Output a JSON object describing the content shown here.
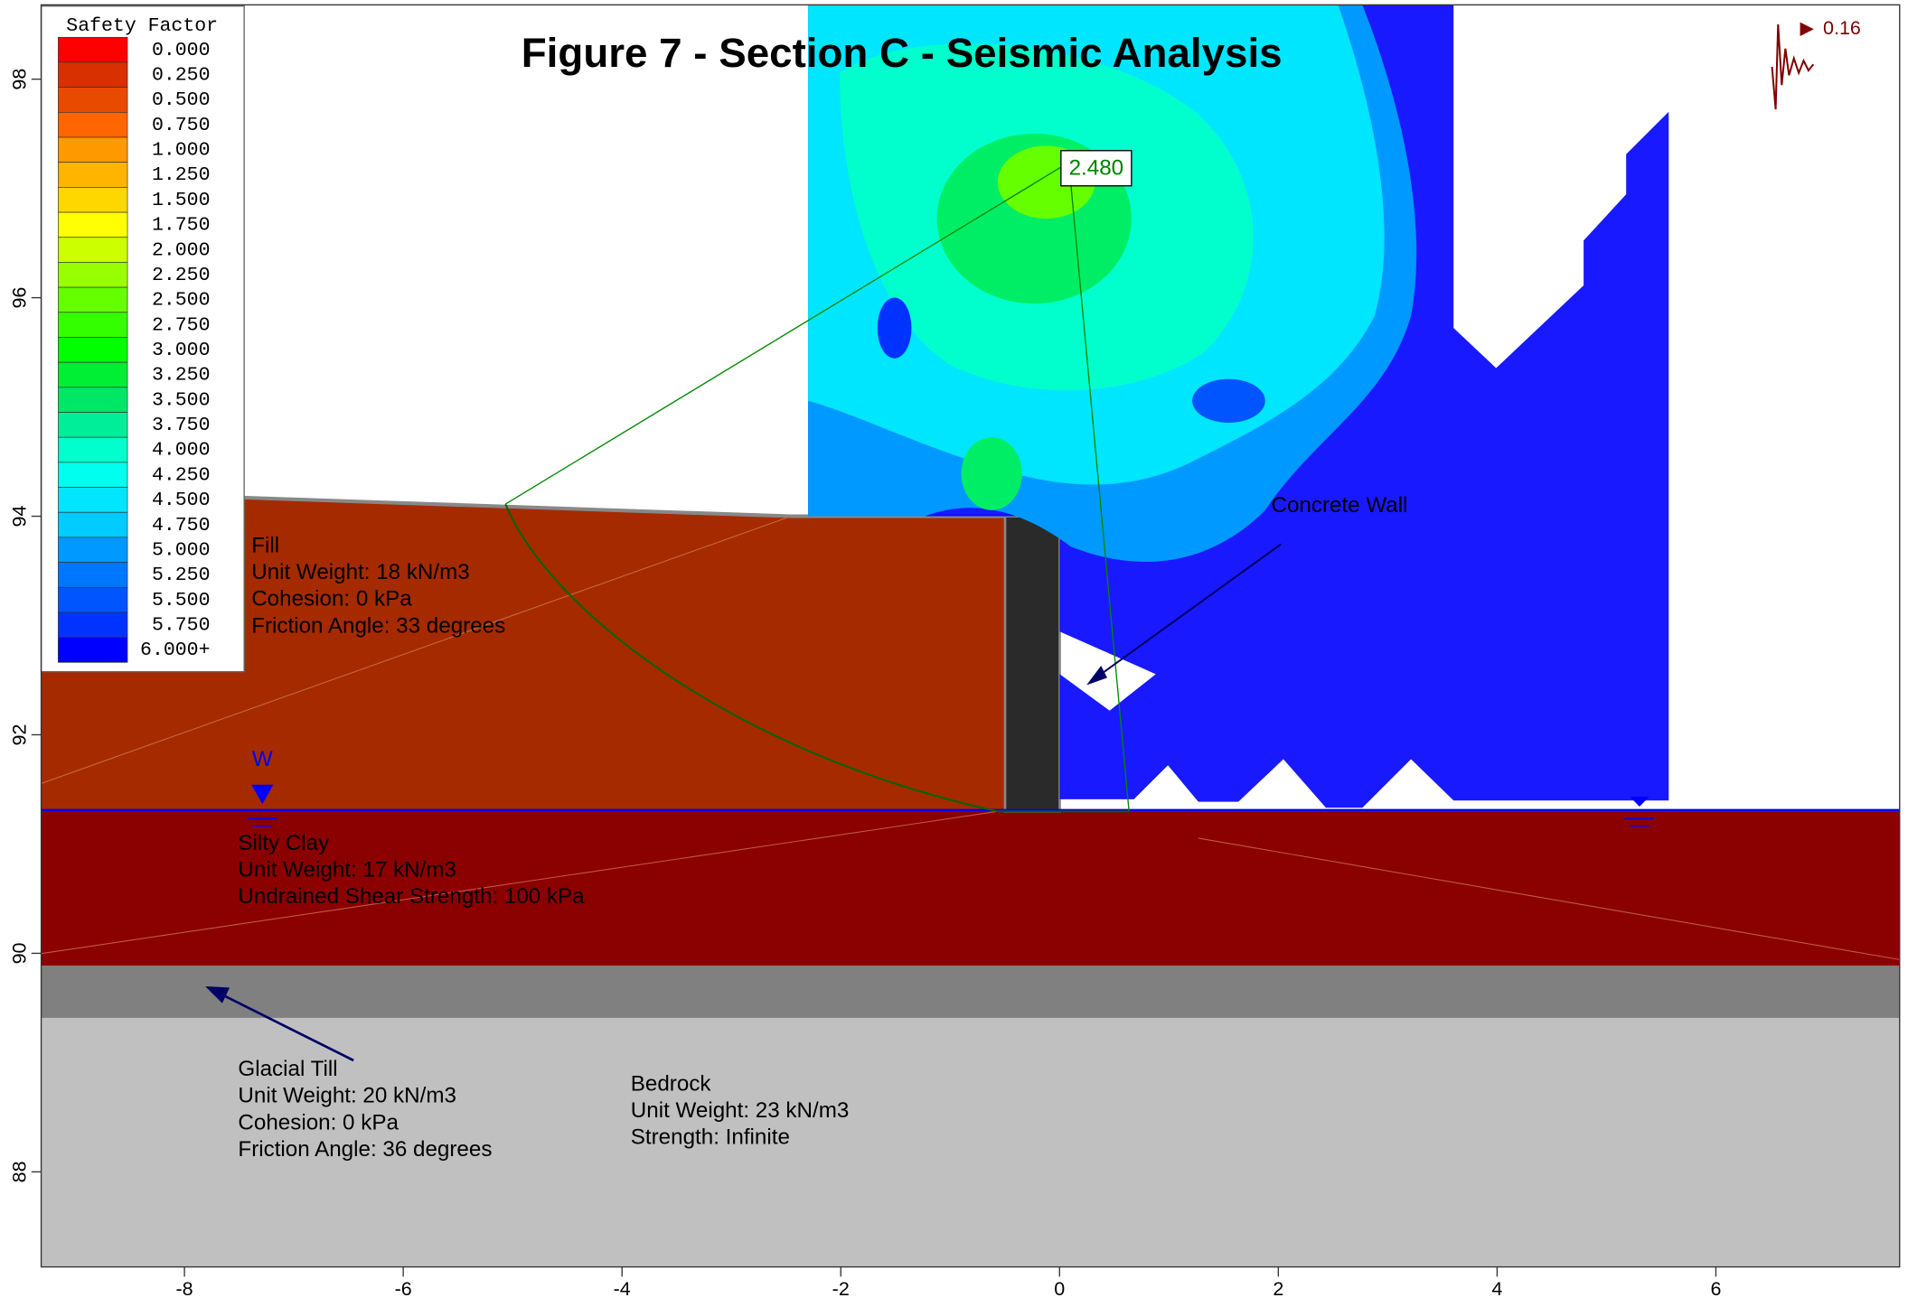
{
  "chart_data": {
    "type": "slope-stability",
    "title": "Figure 7 - Section C - Seismic Analysis",
    "xlim": [
      -9.31,
      7.68
    ],
    "ylim": [
      87.13,
      98.68
    ],
    "xticks": [
      -8,
      -6,
      -4,
      -2,
      0,
      2,
      4,
      6
    ],
    "yticks": [
      88,
      90,
      92,
      94,
      96,
      98
    ],
    "legend": {
      "title": "Safety Factor",
      "levels": [
        {
          "value": 0,
          "label": "0.000"
        },
        {
          "value": 0.25,
          "label": "0.250"
        },
        {
          "value": 0.5,
          "label": "0.500"
        },
        {
          "value": 0.75,
          "label": "0.750"
        },
        {
          "value": 1,
          "label": "1.000"
        },
        {
          "value": 1.25,
          "label": "1.250"
        },
        {
          "value": 1.5,
          "label": "1.500"
        },
        {
          "value": 1.75,
          "label": "1.750"
        },
        {
          "value": 2,
          "label": "2.000"
        },
        {
          "value": 2.25,
          "label": "2.250"
        },
        {
          "value": 2.5,
          "label": "2.500"
        },
        {
          "value": 2.75,
          "label": "2.750"
        },
        {
          "value": 3,
          "label": "3.000"
        },
        {
          "value": 3.25,
          "label": "3.250"
        },
        {
          "value": 3.5,
          "label": "3.500"
        },
        {
          "value": 3.75,
          "label": "3.750"
        },
        {
          "value": 4,
          "label": "4.000"
        },
        {
          "value": 4.25,
          "label": "4.250"
        },
        {
          "value": 4.5,
          "label": "4.500"
        },
        {
          "value": 4.75,
          "label": "4.750"
        },
        {
          "value": 5,
          "label": "5.000"
        },
        {
          "value": 5.25,
          "label": "5.250"
        },
        {
          "value": 5.5,
          "label": "5.500"
        },
        {
          "value": 5.75,
          "label": "5.750"
        },
        {
          "value": 6,
          "label": "6.000+"
        }
      ],
      "colors": [
        "#ff0000",
        "#d83000",
        "#e84a00",
        "#ff6600",
        "#ff9900",
        "#ffb400",
        "#ffd700",
        "#ffff00",
        "#ccff00",
        "#99ff00",
        "#66ff00",
        "#33ff00",
        "#00ff00",
        "#00ee33",
        "#00e666",
        "#00ee99",
        "#00ffcc",
        "#00ffee",
        "#00e6ff",
        "#00ccff",
        "#0099ff",
        "#0077ff",
        "#0055ff",
        "#0033ff",
        "#0000ff"
      ]
    },
    "safety_factor": {
      "value": 2.48,
      "label": "2.480"
    },
    "seismic_coefficient": 0.16,
    "water_label": "W",
    "wall_label": "Concrete Wall",
    "materials": [
      {
        "name": "Fill",
        "properties": [
          "Unit Weight: 18 kN/m3",
          "Cohesion: 0 kPa",
          "Friction Angle: 33 degrees"
        ],
        "color": "#a52a00"
      },
      {
        "name": "Silty Clay",
        "properties": [
          "Unit Weight: 17 kN/m3",
          "Undrained Shear Strength: 100 kPa"
        ],
        "color": "#8b0000"
      },
      {
        "name": "Glacial Till",
        "properties": [
          "Unit Weight: 20 kN/m3",
          "Cohesion: 0 kPa",
          "Friction Angle: 36 degrees"
        ],
        "color": "#808080"
      },
      {
        "name": "Bedrock",
        "properties": [
          "Unit Weight: 23 kN/m3",
          "Strength: Infinite"
        ],
        "color": "#c0c0c0"
      }
    ]
  }
}
